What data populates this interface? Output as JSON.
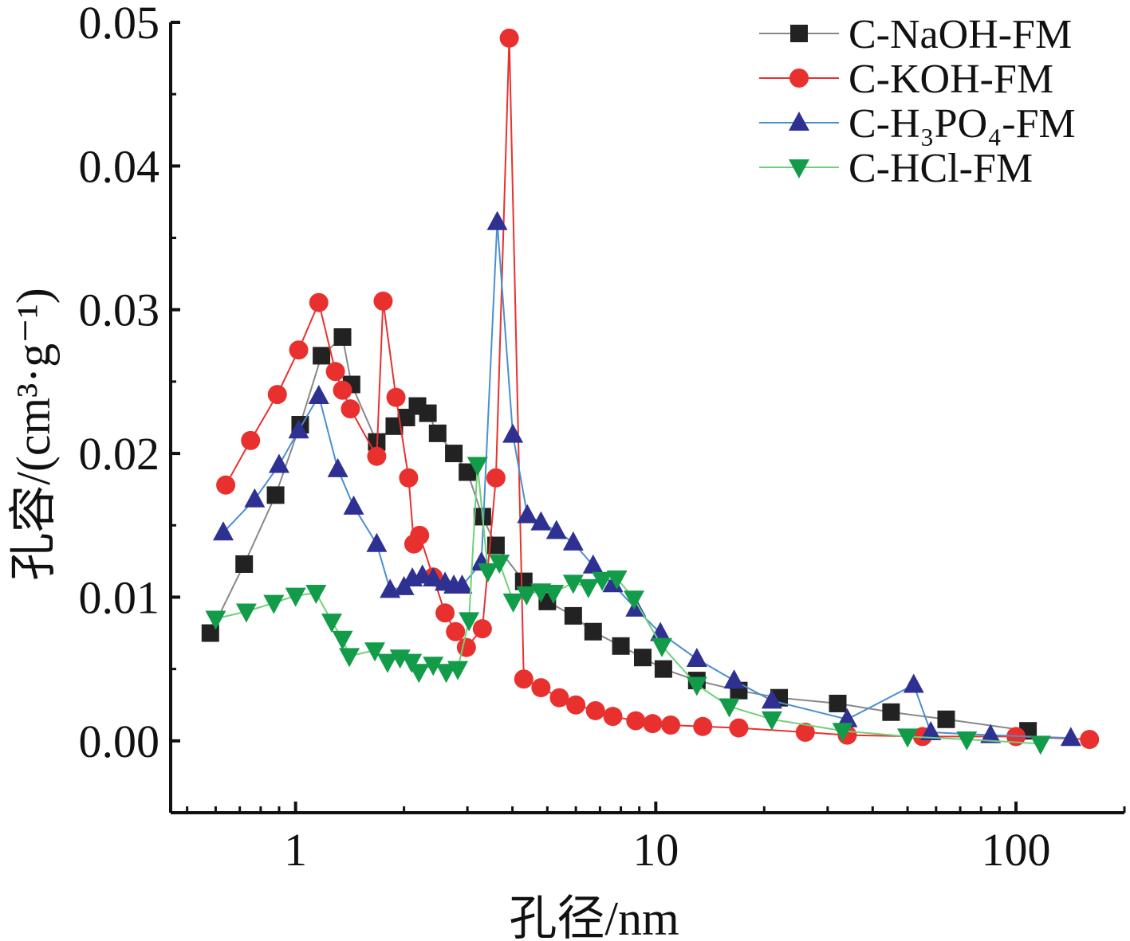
{
  "chart_data": {
    "type": "line",
    "xlabel": "孔径/nm",
    "ylabel": "孔容/(cm³·g⁻¹)",
    "xscale": "log",
    "xlim": [
      0.45,
      200
    ],
    "ylim": [
      -0.005,
      0.05
    ],
    "x_ticks": [
      1,
      10,
      100
    ],
    "x_tick_labels": [
      "1",
      "10",
      "100"
    ],
    "y_ticks": [
      0.0,
      0.01,
      0.02,
      0.03,
      0.04,
      0.05
    ],
    "y_tick_labels": [
      "0.00",
      "0.01",
      "0.02",
      "0.03",
      "0.04",
      "0.05"
    ],
    "legend_position": "top-right",
    "grid": false,
    "series": [
      {
        "name": "C-NaOH-FM",
        "marker": "square",
        "color": "#222222",
        "line_color": "#888888",
        "x": [
          0.58,
          0.72,
          0.88,
          1.03,
          1.18,
          1.35,
          1.43,
          1.68,
          1.88,
          2.03,
          2.18,
          2.33,
          2.48,
          2.75,
          3.0,
          3.3,
          3.6,
          4.3,
          5.0,
          5.9,
          6.7,
          8.0,
          9.2,
          10.5,
          13.0,
          17.0,
          22.0,
          32.0,
          45.0,
          64.0,
          108.0
        ],
        "y": [
          0.0075,
          0.0123,
          0.0171,
          0.022,
          0.0268,
          0.0281,
          0.0248,
          0.0208,
          0.0219,
          0.0225,
          0.0233,
          0.0228,
          0.0214,
          0.02,
          0.0187,
          0.0156,
          0.0136,
          0.0111,
          0.0097,
          0.0087,
          0.0076,
          0.0066,
          0.0058,
          0.005,
          0.0042,
          0.0035,
          0.003,
          0.0026,
          0.002,
          0.0015,
          0.0007
        ]
      },
      {
        "name": "C-KOH-FM",
        "marker": "circle",
        "color": "#e8312f",
        "line_color": "#e8312f",
        "x": [
          0.64,
          0.75,
          0.89,
          1.02,
          1.16,
          1.29,
          1.35,
          1.42,
          1.68,
          1.75,
          1.9,
          2.06,
          2.13,
          2.21,
          2.41,
          2.6,
          2.78,
          2.98,
          3.3,
          3.6,
          3.92,
          4.3,
          4.8,
          5.4,
          6.0,
          6.8,
          7.6,
          8.8,
          9.8,
          11.0,
          13.5,
          17.0,
          26.0,
          34.0,
          55.0,
          100.0,
          160.0
        ],
        "y": [
          0.0178,
          0.0209,
          0.0241,
          0.0272,
          0.0305,
          0.0257,
          0.0244,
          0.0231,
          0.0198,
          0.0306,
          0.0239,
          0.0183,
          0.0137,
          0.0143,
          0.0114,
          0.0089,
          0.0076,
          0.0065,
          0.0078,
          0.0183,
          0.0489,
          0.0043,
          0.0037,
          0.003,
          0.0025,
          0.0021,
          0.0017,
          0.0014,
          0.0012,
          0.0011,
          0.001,
          0.0009,
          0.0006,
          0.0004,
          0.0003,
          0.0003,
          0.0001
        ]
      },
      {
        "name": "C-H₃PO₄-FM",
        "marker": "triangle-up",
        "color": "#2e3192",
        "line_color": "#4a8fd0",
        "x": [
          0.63,
          0.77,
          0.9,
          1.02,
          1.16,
          1.31,
          1.45,
          1.68,
          1.83,
          2.0,
          2.11,
          2.25,
          2.41,
          2.6,
          2.75,
          2.9,
          3.28,
          3.63,
          4.01,
          4.4,
          4.8,
          5.3,
          5.9,
          6.7,
          7.6,
          8.8,
          10.3,
          13.0,
          16.5,
          21.0,
          34.0,
          52.0,
          58.0,
          85.0,
          142.0
        ],
        "y": [
          0.0145,
          0.0168,
          0.0192,
          0.0216,
          0.024,
          0.0189,
          0.0163,
          0.0137,
          0.0105,
          0.0107,
          0.0113,
          0.0115,
          0.0113,
          0.011,
          0.0108,
          0.0108,
          0.0124,
          0.0361,
          0.0213,
          0.0157,
          0.0152,
          0.0146,
          0.0138,
          0.0122,
          0.0109,
          0.0092,
          0.0075,
          0.0057,
          0.0042,
          0.0028,
          0.0015,
          0.0039,
          0.0006,
          0.0004,
          0.0002
        ]
      },
      {
        "name": "C-HCl-FM",
        "marker": "triangle-down",
        "color": "#129c4a",
        "line_color": "#6fd07a",
        "x": [
          0.6,
          0.73,
          0.87,
          1.0,
          1.14,
          1.26,
          1.35,
          1.41,
          1.66,
          1.8,
          1.95,
          2.1,
          2.2,
          2.41,
          2.62,
          2.82,
          3.03,
          3.2,
          3.42,
          3.68,
          4.02,
          4.38,
          4.8,
          5.2,
          5.9,
          6.5,
          7.1,
          7.8,
          8.7,
          10.4,
          13.0,
          16.0,
          21.0,
          33.0,
          50.0,
          73.0,
          117.0
        ],
        "y": [
          0.0085,
          0.009,
          0.0096,
          0.0101,
          0.0103,
          0.0083,
          0.0071,
          0.0059,
          0.0063,
          0.0055,
          0.0058,
          0.0055,
          0.0048,
          0.0053,
          0.0048,
          0.005,
          0.0084,
          0.0192,
          0.0118,
          0.0124,
          0.0097,
          0.0102,
          0.0104,
          0.0103,
          0.011,
          0.0107,
          0.0112,
          0.0113,
          0.0099,
          0.0066,
          0.0039,
          0.0024,
          0.0015,
          0.0007,
          0.0003,
          0.0001,
          -0.0002
        ]
      }
    ]
  }
}
